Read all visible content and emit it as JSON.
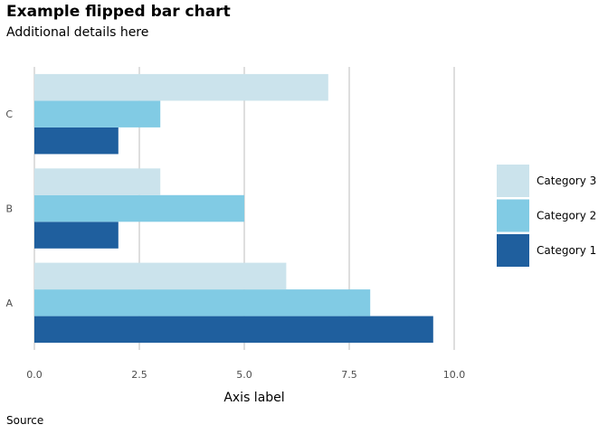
{
  "chart_data": {
    "type": "bar",
    "orientation": "horizontal",
    "title": "Example flipped bar chart",
    "subtitle": "Additional details here",
    "caption": "Source",
    "xlabel": "Axis label",
    "ylabel": "",
    "categories": [
      "A",
      "B",
      "C"
    ],
    "series": [
      {
        "name": "Category 1",
        "color": "#1f5f9e",
        "values": [
          9.5,
          2,
          2
        ]
      },
      {
        "name": "Category 2",
        "color": "#81cbe4",
        "values": [
          8,
          5,
          3
        ]
      },
      {
        "name": "Category 3",
        "color": "#cbe3ec",
        "values": [
          6,
          3,
          7
        ]
      }
    ],
    "xlim": [
      0,
      10.5
    ],
    "x_ticks": [
      "0.0",
      "2.5",
      "5.0",
      "7.5",
      "10.0"
    ],
    "x_tick_values": [
      0,
      2.5,
      5,
      7.5,
      10
    ],
    "grid": "vertical",
    "legend_position": "right",
    "legend_order": [
      "Category 3",
      "Category 2",
      "Category 1"
    ]
  }
}
